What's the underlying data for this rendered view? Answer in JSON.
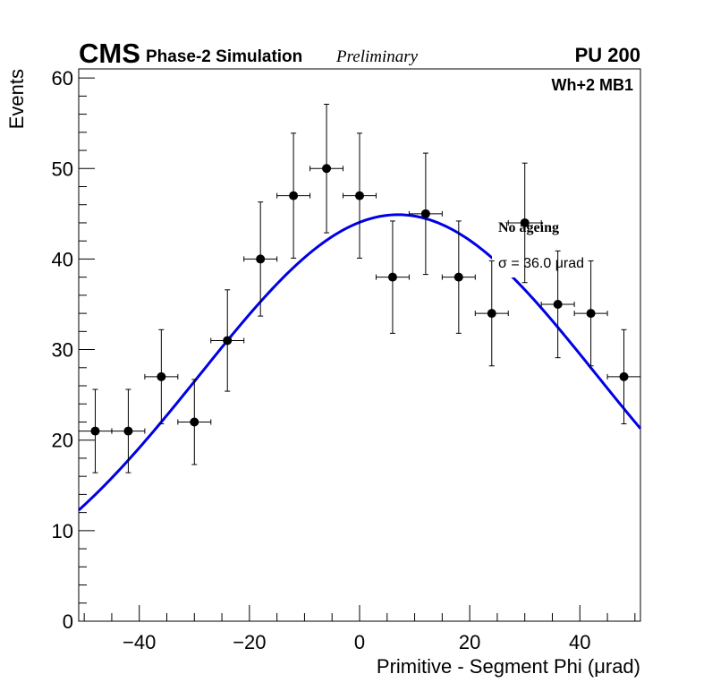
{
  "header": {
    "experiment": "CMS",
    "subtitle": "Phase-2 Simulation",
    "status": "Preliminary",
    "pileup": "PU 200"
  },
  "chart_data": {
    "type": "scatter",
    "title": "",
    "xlabel": "Primitive - Segment Phi (μrad)",
    "ylabel": "Events",
    "xlim": [
      -51,
      51
    ],
    "ylim": [
      0,
      61
    ],
    "xticks": [
      -40,
      -20,
      0,
      20,
      40
    ],
    "yticks": [
      0,
      10,
      20,
      30,
      40,
      50,
      60
    ],
    "region_label": "Wh+2 MB1",
    "series": [
      {
        "name": "No ageing",
        "x": [
          -48,
          -42,
          -36,
          -30,
          -24,
          -18,
          -12,
          -6,
          0,
          6,
          12,
          18,
          24,
          30,
          36,
          42,
          48
        ],
        "y": [
          21,
          21,
          27,
          22,
          31,
          40,
          47,
          50,
          47,
          38,
          45,
          38,
          34,
          44,
          35,
          34,
          27
        ],
        "x_err": 3,
        "y_err": [
          4.6,
          4.6,
          5.2,
          4.7,
          5.6,
          6.3,
          6.9,
          7.1,
          6.9,
          6.2,
          6.7,
          6.2,
          5.8,
          6.6,
          5.9,
          5.8,
          5.2
        ]
      }
    ],
    "fit": {
      "type": "gaussian",
      "amplitude": 44.9,
      "mean": 7,
      "sigma": 36,
      "color": "#0000e6"
    },
    "legend": {
      "label": "No ageing",
      "fit_label": "σ = 36.0  μrad"
    }
  }
}
